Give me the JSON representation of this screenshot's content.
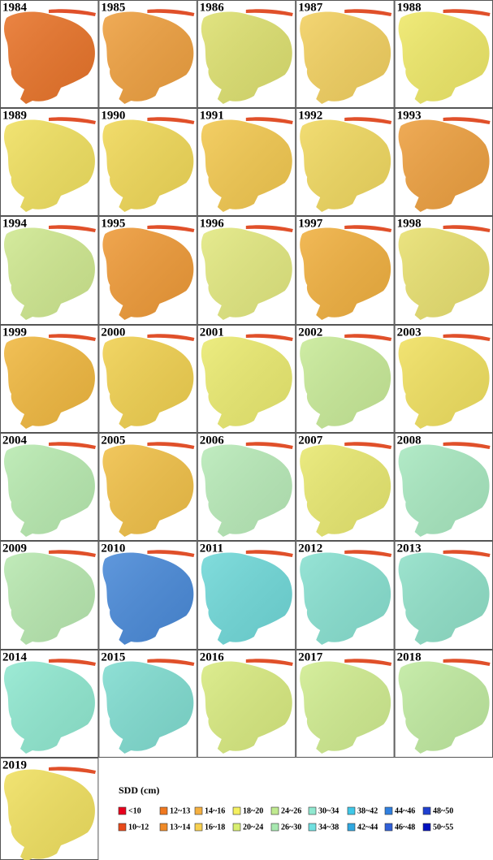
{
  "panels": [
    {
      "year": "1984",
      "color": "#e8742a"
    },
    {
      "year": "1985",
      "color": "#eea040"
    },
    {
      "year": "1986",
      "color": "#dde070"
    },
    {
      "year": "1987",
      "color": "#f2d060"
    },
    {
      "year": "1988",
      "color": "#eee868"
    },
    {
      "year": "1989",
      "color": "#f0e060"
    },
    {
      "year": "1990",
      "color": "#f0d858"
    },
    {
      "year": "1991",
      "color": "#f2c850"
    },
    {
      "year": "1992",
      "color": "#f0d860"
    },
    {
      "year": "1993",
      "color": "#eda040"
    },
    {
      "year": "1994",
      "color": "#cfe890"
    },
    {
      "year": "1995",
      "color": "#ee9a38"
    },
    {
      "year": "1996",
      "color": "#e2e880"
    },
    {
      "year": "1997",
      "color": "#f0b040"
    },
    {
      "year": "1998",
      "color": "#e8e070"
    },
    {
      "year": "1999",
      "color": "#f0b840"
    },
    {
      "year": "2000",
      "color": "#f0d050"
    },
    {
      "year": "2001",
      "color": "#eaea70"
    },
    {
      "year": "2002",
      "color": "#c8ea98"
    },
    {
      "year": "2003",
      "color": "#f0e060"
    },
    {
      "year": "2004",
      "color": "#b8eab0"
    },
    {
      "year": "2005",
      "color": "#f0c048"
    },
    {
      "year": "2006",
      "color": "#b8eab8"
    },
    {
      "year": "2007",
      "color": "#e8e870"
    },
    {
      "year": "2008",
      "color": "#a8e8c0"
    },
    {
      "year": "2009",
      "color": "#b8e8b0"
    },
    {
      "year": "2010",
      "color": "#4a8ad8"
    },
    {
      "year": "2011",
      "color": "#70d8d8"
    },
    {
      "year": "2012",
      "color": "#88e0d0"
    },
    {
      "year": "2013",
      "color": "#90e0c8"
    },
    {
      "year": "2014",
      "color": "#90e8d0"
    },
    {
      "year": "2015",
      "color": "#80dcd0"
    },
    {
      "year": "2016",
      "color": "#d8ea80"
    },
    {
      "year": "2017",
      "color": "#d0ec90"
    },
    {
      "year": "2018",
      "color": "#c0eaa0"
    },
    {
      "year": "2019",
      "color": "#f0e060"
    }
  ],
  "legend": {
    "title": "SDD (cm)",
    "items": [
      {
        "label": "<10",
        "color": "#e8001c"
      },
      {
        "label": "12~13",
        "color": "#f07820"
      },
      {
        "label": "14~16",
        "color": "#f5b040"
      },
      {
        "label": "18~20",
        "color": "#f5f060"
      },
      {
        "label": "24~26",
        "color": "#c0ea90"
      },
      {
        "label": "30~34",
        "color": "#90e8d0"
      },
      {
        "label": "38~42",
        "color": "#40c8e8"
      },
      {
        "label": "44~46",
        "color": "#3080e0"
      },
      {
        "label": "48~50",
        "color": "#2040d0"
      },
      {
        "label": "10~12",
        "color": "#e84a1a"
      },
      {
        "label": "13~14",
        "color": "#f08a28"
      },
      {
        "label": "16~18",
        "color": "#f7d050"
      },
      {
        "label": "20~24",
        "color": "#d8ee70"
      },
      {
        "label": "26~30",
        "color": "#a8e8b0"
      },
      {
        "label": "34~38",
        "color": "#70e0e0"
      },
      {
        "label": "42~44",
        "color": "#30a8e0"
      },
      {
        "label": "46~48",
        "color": "#3060d8"
      },
      {
        "label": "50~55",
        "color": "#0010c0"
      }
    ]
  }
}
